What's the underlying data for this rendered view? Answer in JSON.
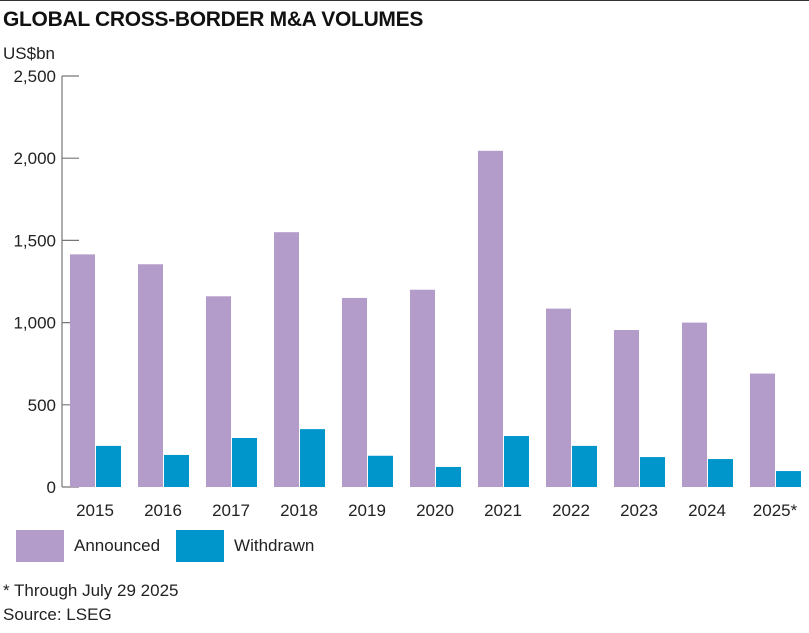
{
  "chart_data": {
    "type": "bar",
    "title": "GLOBAL CROSS-BORDER M&A VOLUMES",
    "ylabel": "US$bn",
    "xlabel": "",
    "ylim": [
      0,
      2500
    ],
    "yticks": [
      0,
      500,
      1000,
      1500,
      2000,
      2500
    ],
    "ytick_labels": [
      "0",
      "500",
      "1,000",
      "1,500",
      "2,000",
      "2,500"
    ],
    "categories": [
      "2015",
      "2016",
      "2017",
      "2018",
      "2019",
      "2020",
      "2021",
      "2022",
      "2023",
      "2024",
      "2025*"
    ],
    "series": [
      {
        "name": "Announced",
        "color": "#b39cca",
        "values": [
          1415,
          1355,
          1160,
          1550,
          1150,
          1200,
          2045,
          1085,
          955,
          1000,
          690
        ]
      },
      {
        "name": "Withdrawn",
        "color": "#0096cc",
        "values": [
          250,
          195,
          298,
          352,
          190,
          122,
          310,
          250,
          182,
          170,
          97
        ]
      }
    ],
    "legend": "bottom-left",
    "grid": false
  },
  "footnote": "* Through July 29 2025",
  "source": "Source: LSEG"
}
